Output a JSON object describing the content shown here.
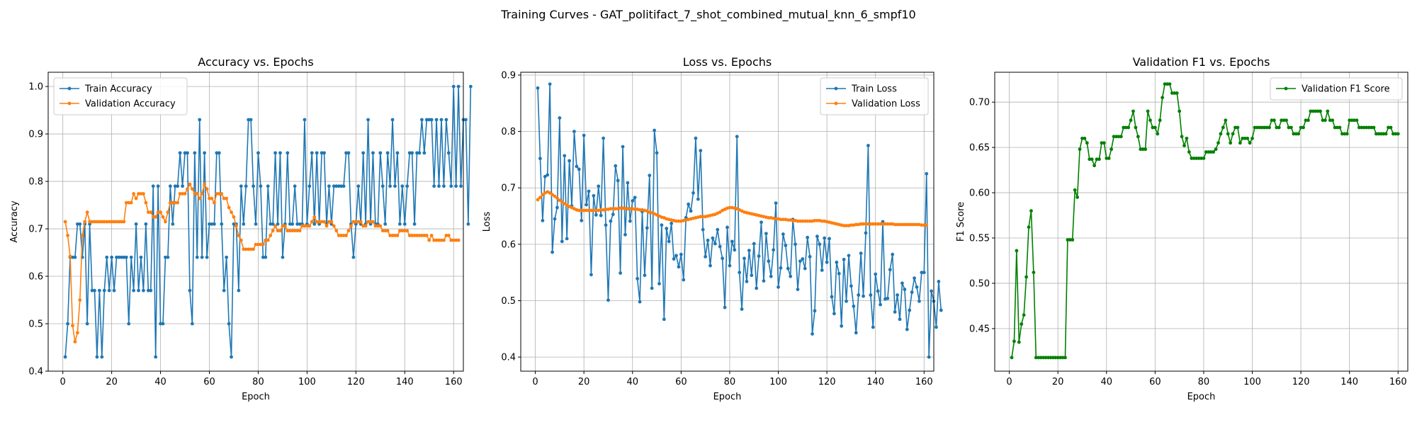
{
  "suptitle": "Training Curves - GAT_politifact_7_shot_combined_mutual_knn_6_smpf10",
  "colors": {
    "train": "#1f77b4",
    "val": "#ff7f0e",
    "f1": "#008000",
    "grid": "#b0b0b0"
  },
  "chart_data": [
    {
      "type": "line",
      "title": "Accuracy vs. Epochs",
      "xlabel": "Epoch",
      "ylabel": "Accuracy",
      "xlim": [
        -6,
        164
      ],
      "ylim": [
        0.4,
        1.03
      ],
      "xticks": [
        0,
        20,
        40,
        60,
        80,
        100,
        120,
        140,
        160
      ],
      "yticks": [
        0.4,
        0.5,
        0.6,
        0.7,
        0.8,
        0.9,
        1.0
      ],
      "ytick_labels": [
        "0.4",
        "0.5",
        "0.6",
        "0.7",
        "0.8",
        "0.9",
        "1.0"
      ],
      "grid": true,
      "legend": "top-left",
      "series": [
        {
          "name": "Train Accuracy",
          "color": "#1f77b4",
          "values": [
            0.43,
            0.5,
            0.64,
            0.64,
            0.64,
            0.71,
            0.71,
            0.64,
            0.71,
            0.5,
            0.71,
            0.57,
            0.57,
            0.43,
            0.57,
            0.43,
            0.57,
            0.64,
            0.57,
            0.64,
            0.57,
            0.64,
            0.64,
            0.64,
            0.64,
            0.64,
            0.5,
            0.64,
            0.57,
            0.71,
            0.57,
            0.64,
            0.57,
            0.71,
            0.57,
            0.57,
            0.79,
            0.43,
            0.79,
            0.5,
            0.5,
            0.64,
            0.64,
            0.79,
            0.71,
            0.79,
            0.79,
            0.86,
            0.79,
            0.86,
            0.86,
            0.57,
            0.5,
            0.86,
            0.64,
            0.93,
            0.64,
            0.86,
            0.64,
            0.71,
            0.71,
            0.71,
            0.86,
            0.86,
            0.71,
            0.57,
            0.64,
            0.5,
            0.43,
            0.71,
            0.71,
            0.57,
            0.79,
            0.71,
            0.79,
            0.93,
            0.93,
            0.79,
            0.71,
            0.86,
            0.79,
            0.64,
            0.64,
            0.79,
            0.71,
            0.71,
            0.86,
            0.71,
            0.86,
            0.64,
            0.71,
            0.86,
            0.71,
            0.71,
            0.79,
            0.71,
            0.71,
            0.71,
            0.93,
            0.71,
            0.79,
            0.86,
            0.71,
            0.86,
            0.71,
            0.86,
            0.86,
            0.71,
            0.79,
            0.71,
            0.79,
            0.79,
            0.79,
            0.79,
            0.79,
            0.86,
            0.86,
            0.71,
            0.64,
            0.71,
            0.79,
            0.71,
            0.86,
            0.71,
            0.93,
            0.71,
            0.86,
            0.71,
            0.71,
            0.86,
            0.79,
            0.71,
            0.86,
            0.79,
            0.93,
            0.79,
            0.86,
            0.71,
            0.79,
            0.71,
            0.79,
            0.86,
            0.86,
            0.71,
            0.86,
            0.86,
            0.93,
            0.86,
            0.93,
            0.93,
            0.93,
            0.79,
            0.93,
            0.79,
            0.93,
            0.79,
            0.93,
            0.86,
            0.79,
            1.0,
            0.79,
            1.0,
            0.79,
            0.93,
            0.93,
            0.71,
            1.0
          ]
        },
        {
          "name": "Validation Accuracy",
          "color": "#ff7f0e",
          "values": [
            0.715,
            0.686,
            0.642,
            0.496,
            0.462,
            0.481,
            0.55,
            0.686,
            0.715,
            0.735,
            0.715,
            0.715,
            0.715,
            0.715,
            0.715,
            0.715,
            0.715,
            0.715,
            0.715,
            0.715,
            0.715,
            0.715,
            0.715,
            0.715,
            0.715,
            0.755,
            0.755,
            0.755,
            0.774,
            0.764,
            0.774,
            0.774,
            0.774,
            0.755,
            0.735,
            0.735,
            0.725,
            0.725,
            0.735,
            0.735,
            0.725,
            0.715,
            0.735,
            0.755,
            0.755,
            0.755,
            0.755,
            0.774,
            0.774,
            0.774,
            0.784,
            0.794,
            0.784,
            0.774,
            0.774,
            0.764,
            0.774,
            0.794,
            0.784,
            0.764,
            0.764,
            0.755,
            0.774,
            0.774,
            0.774,
            0.764,
            0.764,
            0.745,
            0.735,
            0.725,
            0.706,
            0.686,
            0.676,
            0.657,
            0.657,
            0.657,
            0.657,
            0.657,
            0.667,
            0.667,
            0.667,
            0.667,
            0.676,
            0.676,
            0.686,
            0.696,
            0.706,
            0.696,
            0.696,
            0.706,
            0.706,
            0.696,
            0.696,
            0.696,
            0.696,
            0.696,
            0.696,
            0.706,
            0.706,
            0.706,
            0.706,
            0.715,
            0.725,
            0.715,
            0.715,
            0.715,
            0.715,
            0.706,
            0.715,
            0.715,
            0.706,
            0.696,
            0.686,
            0.686,
            0.686,
            0.686,
            0.696,
            0.706,
            0.715,
            0.715,
            0.715,
            0.715,
            0.706,
            0.706,
            0.715,
            0.715,
            0.715,
            0.706,
            0.706,
            0.706,
            0.696,
            0.696,
            0.696,
            0.686,
            0.686,
            0.686,
            0.686,
            0.696,
            0.696,
            0.696,
            0.696,
            0.686,
            0.686,
            0.686,
            0.686,
            0.686,
            0.686,
            0.686,
            0.686,
            0.676,
            0.686,
            0.676,
            0.676,
            0.676,
            0.676,
            0.676,
            0.686,
            0.686,
            0.676,
            0.676,
            0.676,
            0.676
          ]
        }
      ]
    },
    {
      "type": "line",
      "title": "Loss vs. Epochs",
      "xlabel": "Epoch",
      "ylabel": "Loss",
      "xlim": [
        -6,
        164
      ],
      "ylim": [
        0.375,
        0.905
      ],
      "xticks": [
        0,
        20,
        40,
        60,
        80,
        100,
        120,
        140,
        160
      ],
      "yticks": [
        0.4,
        0.5,
        0.6,
        0.7,
        0.8,
        0.9
      ],
      "ytick_labels": [
        "0.4",
        "0.5",
        "0.6",
        "0.7",
        "0.8",
        "0.9"
      ],
      "grid": true,
      "legend": "top-right",
      "series": [
        {
          "name": "Train Loss",
          "color": "#1f77b4",
          "values": [
            0.877,
            0.752,
            0.642,
            0.72,
            0.723,
            0.884,
            0.586,
            0.645,
            0.665,
            0.824,
            0.605,
            0.757,
            0.61,
            0.748,
            0.668,
            0.8,
            0.738,
            0.733,
            0.642,
            0.793,
            0.67,
            0.694,
            0.546,
            0.686,
            0.652,
            0.703,
            0.651,
            0.788,
            0.634,
            0.501,
            0.641,
            0.653,
            0.739,
            0.713,
            0.549,
            0.773,
            0.617,
            0.709,
            0.641,
            0.677,
            0.683,
            0.539,
            0.498,
            0.658,
            0.545,
            0.629,
            0.722,
            0.522,
            0.802,
            0.762,
            0.53,
            0.634,
            0.467,
            0.628,
            0.605,
            0.637,
            0.574,
            0.58,
            0.56,
            0.582,
            0.537,
            0.647,
            0.671,
            0.659,
            0.691,
            0.788,
            0.68,
            0.766,
            0.626,
            0.578,
            0.607,
            0.562,
            0.611,
            0.601,
            0.626,
            0.596,
            0.575,
            0.488,
            0.63,
            0.562,
            0.605,
            0.59,
            0.791,
            0.55,
            0.485,
            0.575,
            0.534,
            0.589,
            0.545,
            0.601,
            0.522,
            0.579,
            0.639,
            0.535,
            0.619,
            0.57,
            0.543,
            0.59,
            0.673,
            0.524,
            0.558,
            0.618,
            0.598,
            0.557,
            0.543,
            0.644,
            0.6,
            0.52,
            0.57,
            0.574,
            0.557,
            0.612,
            0.578,
            0.441,
            0.482,
            0.614,
            0.6,
            0.554,
            0.611,
            0.568,
            0.61,
            0.507,
            0.477,
            0.568,
            0.548,
            0.455,
            0.573,
            0.499,
            0.58,
            0.526,
            0.49,
            0.443,
            0.51,
            0.584,
            0.508,
            0.62,
            0.775,
            0.51,
            0.453,
            0.547,
            0.517,
            0.493,
            0.64,
            0.503,
            0.504,
            0.555,
            0.582,
            0.48,
            0.51,
            0.467,
            0.531,
            0.52,
            0.449,
            0.483,
            0.515,
            0.54,
            0.524,
            0.499,
            0.55,
            0.55,
            0.725,
            0.4,
            0.517,
            0.499,
            0.453,
            0.534,
            0.483
          ]
        },
        {
          "name": "Validation Loss",
          "color": "#ff7f0e",
          "values": [
            0.679,
            0.683,
            0.688,
            0.691,
            0.693,
            0.691,
            0.688,
            0.685,
            0.682,
            0.678,
            0.675,
            0.672,
            0.669,
            0.667,
            0.665,
            0.663,
            0.661,
            0.66,
            0.66,
            0.66,
            0.66,
            0.66,
            0.66,
            0.66,
            0.66,
            0.66,
            0.661,
            0.661,
            0.662,
            0.662,
            0.663,
            0.663,
            0.663,
            0.663,
            0.664,
            0.664,
            0.663,
            0.663,
            0.663,
            0.663,
            0.662,
            0.662,
            0.661,
            0.661,
            0.66,
            0.659,
            0.657,
            0.656,
            0.654,
            0.652,
            0.65,
            0.648,
            0.647,
            0.645,
            0.644,
            0.643,
            0.642,
            0.641,
            0.641,
            0.641,
            0.642,
            0.643,
            0.644,
            0.645,
            0.646,
            0.647,
            0.648,
            0.649,
            0.649,
            0.649,
            0.65,
            0.651,
            0.652,
            0.653,
            0.655,
            0.657,
            0.66,
            0.662,
            0.664,
            0.665,
            0.665,
            0.664,
            0.663,
            0.661,
            0.659,
            0.657,
            0.656,
            0.655,
            0.654,
            0.653,
            0.652,
            0.651,
            0.65,
            0.649,
            0.648,
            0.647,
            0.647,
            0.646,
            0.645,
            0.645,
            0.644,
            0.644,
            0.644,
            0.643,
            0.643,
            0.642,
            0.642,
            0.641,
            0.641,
            0.641,
            0.641,
            0.641,
            0.641,
            0.641,
            0.642,
            0.642,
            0.642,
            0.641,
            0.641,
            0.64,
            0.639,
            0.638,
            0.637,
            0.636,
            0.635,
            0.634,
            0.633,
            0.633,
            0.633,
            0.634,
            0.634,
            0.635,
            0.635,
            0.636,
            0.636,
            0.636,
            0.636,
            0.636,
            0.636,
            0.636,
            0.636,
            0.636,
            0.636,
            0.636,
            0.636,
            0.636,
            0.636,
            0.635,
            0.635,
            0.635,
            0.635,
            0.635,
            0.635,
            0.635,
            0.635,
            0.635,
            0.635,
            0.635,
            0.634,
            0.634,
            0.634
          ]
        }
      ]
    },
    {
      "type": "line",
      "title": "Validation F1 vs. Epochs",
      "xlabel": "Epoch",
      "ylabel": "F1 Score",
      "xlim": [
        -6,
        164
      ],
      "ylim": [
        0.403,
        0.733
      ],
      "xticks": [
        0,
        20,
        40,
        60,
        80,
        100,
        120,
        140,
        160
      ],
      "yticks": [
        0.45,
        0.5,
        0.55,
        0.6,
        0.65,
        0.7
      ],
      "ytick_labels": [
        "0.45",
        "0.50",
        "0.55",
        "0.60",
        "0.65",
        "0.70"
      ],
      "grid": true,
      "legend": "top-right",
      "series": [
        {
          "name": "Validation F1 Score",
          "color": "#008000",
          "values": [
            0.418,
            0.436,
            0.536,
            0.435,
            0.455,
            0.465,
            0.507,
            0.562,
            0.58,
            0.512,
            0.418,
            0.418,
            0.418,
            0.418,
            0.418,
            0.418,
            0.418,
            0.418,
            0.418,
            0.418,
            0.418,
            0.418,
            0.418,
            0.548,
            0.548,
            0.548,
            0.603,
            0.595,
            0.648,
            0.66,
            0.66,
            0.655,
            0.637,
            0.637,
            0.63,
            0.637,
            0.637,
            0.655,
            0.655,
            0.638,
            0.638,
            0.648,
            0.662,
            0.662,
            0.662,
            0.662,
            0.672,
            0.672,
            0.672,
            0.68,
            0.69,
            0.672,
            0.662,
            0.648,
            0.648,
            0.648,
            0.69,
            0.68,
            0.672,
            0.672,
            0.665,
            0.68,
            0.705,
            0.72,
            0.72,
            0.72,
            0.71,
            0.71,
            0.71,
            0.69,
            0.662,
            0.652,
            0.66,
            0.645,
            0.638,
            0.638,
            0.638,
            0.638,
            0.638,
            0.638,
            0.645,
            0.645,
            0.645,
            0.645,
            0.648,
            0.655,
            0.665,
            0.672,
            0.68,
            0.665,
            0.655,
            0.665,
            0.672,
            0.672,
            0.655,
            0.66,
            0.66,
            0.66,
            0.655,
            0.66,
            0.672,
            0.672,
            0.672,
            0.672,
            0.672,
            0.672,
            0.672,
            0.68,
            0.68,
            0.672,
            0.672,
            0.68,
            0.68,
            0.68,
            0.672,
            0.672,
            0.665,
            0.665,
            0.665,
            0.672,
            0.672,
            0.68,
            0.68,
            0.69,
            0.69,
            0.69,
            0.69,
            0.69,
            0.68,
            0.68,
            0.69,
            0.68,
            0.68,
            0.672,
            0.672,
            0.672,
            0.665,
            0.665,
            0.665,
            0.68,
            0.68,
            0.68,
            0.68,
            0.672,
            0.672,
            0.672,
            0.672,
            0.672,
            0.672,
            0.672,
            0.665,
            0.665,
            0.665,
            0.665,
            0.665,
            0.672,
            0.672,
            0.665,
            0.665,
            0.665
          ]
        }
      ]
    }
  ]
}
